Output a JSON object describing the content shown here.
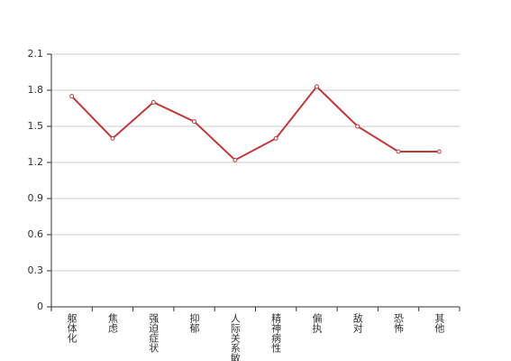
{
  "chart_data": {
    "type": "line",
    "categories": [
      "躯体化",
      "焦虑",
      "强迫症状",
      "抑郁",
      "人际关系敏感",
      "精神病性",
      "偏执",
      "敌对",
      "恐怖",
      "其他"
    ],
    "series": [
      {
        "name": null,
        "color": "#c0393a",
        "values": [
          1.75,
          1.4,
          1.7,
          1.54,
          1.22,
          1.4,
          1.83,
          1.5,
          1.29,
          1.29
        ]
      }
    ],
    "ylim": [
      0,
      2.1
    ],
    "yticks": [
      0,
      0.3,
      0.6,
      0.9,
      1.2,
      1.5,
      1.8,
      2.1
    ],
    "grid": true
  }
}
